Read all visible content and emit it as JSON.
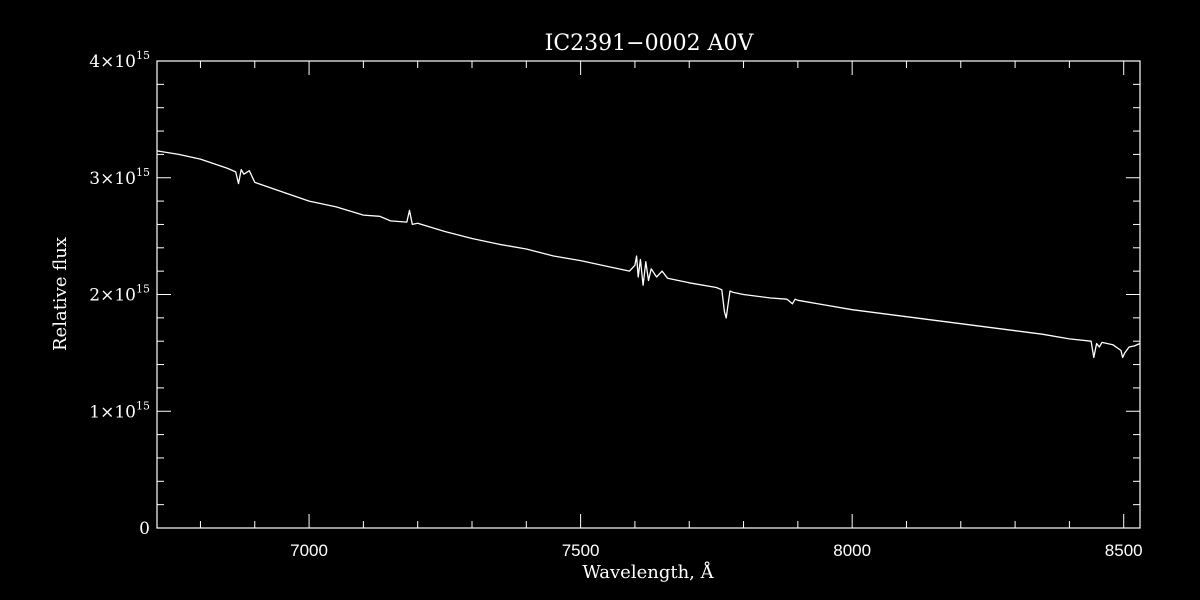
{
  "chart_data": {
    "type": "line",
    "title": "IC2391−0002  A0V",
    "xlabel": "Wavelength, Å",
    "ylabel": "Relative flux",
    "xlim": [
      6720,
      8530
    ],
    "ylim": [
      0,
      4000000000000000.0
    ],
    "x_ticks": [
      7000,
      7500,
      8000,
      8500
    ],
    "x_tick_labels": [
      "7000",
      "7500",
      "8000",
      "8500"
    ],
    "y_ticks": [
      {
        "value": 0,
        "mantissa": "0",
        "exponent": ""
      },
      {
        "value": 1000000000000000.0,
        "mantissa": "1×10",
        "exponent": "15"
      },
      {
        "value": 2000000000000000.0,
        "mantissa": "2×10",
        "exponent": "15"
      },
      {
        "value": 3000000000000000.0,
        "mantissa": "3×10",
        "exponent": "15"
      },
      {
        "value": 4000000000000000.0,
        "mantissa": "4×10",
        "exponent": "15"
      }
    ],
    "grid": false,
    "colors": {
      "background": "#000000",
      "foreground": "#ffffff"
    },
    "series": [
      {
        "x": [
          6720,
          6760,
          6800,
          6850,
          6865,
          6870,
          6875,
          6880,
          6890,
          6900,
          6950,
          7000,
          7050,
          7100,
          7130,
          7150,
          7180,
          7185,
          7190,
          7200,
          7250,
          7300,
          7350,
          7400,
          7450,
          7500,
          7550,
          7590,
          7600,
          7603,
          7606,
          7610,
          7615,
          7620,
          7625,
          7630,
          7640,
          7650,
          7660,
          7680,
          7700,
          7750,
          7760,
          7765,
          7768,
          7771,
          7775,
          7780,
          7800,
          7850,
          7880,
          7890,
          7895,
          7900,
          7950,
          8000,
          8050,
          8100,
          8150,
          8200,
          8250,
          8300,
          8350,
          8400,
          8440,
          8445,
          8450,
          8455,
          8460,
          8480,
          8495,
          8498,
          8502,
          8510,
          8520,
          8530
        ],
        "y": [
          3230000000000000.0,
          3200000000000000.0,
          3160000000000000.0,
          3080000000000000.0,
          3050000000000000.0,
          2950000000000000.0,
          3070000000000000.0,
          3030000000000000.0,
          3060000000000000.0,
          2960000000000000.0,
          2880000000000000.0,
          2800000000000000.0,
          2750000000000000.0,
          2680000000000000.0,
          2670000000000000.0,
          2630000000000000.0,
          2620000000000000.0,
          2720000000000000.0,
          2600000000000000.0,
          2610000000000000.0,
          2540000000000000.0,
          2480000000000000.0,
          2430000000000000.0,
          2390000000000000.0,
          2330000000000000.0,
          2290000000000000.0,
          2240000000000000.0,
          2200000000000000.0,
          2250000000000000.0,
          2330000000000000.0,
          2150000000000000.0,
          2300000000000000.0,
          2080000000000000.0,
          2280000000000000.0,
          2120000000000000.0,
          2220000000000000.0,
          2150000000000000.0,
          2200000000000000.0,
          2140000000000000.0,
          2120000000000000.0,
          2100000000000000.0,
          2060000000000000.0,
          2040000000000000.0,
          1850000000000000.0,
          1800000000000000.0,
          1900000000000000.0,
          2030000000000000.0,
          2020000000000000.0,
          2000000000000000.0,
          1970000000000000.0,
          1960000000000000.0,
          1920000000000000.0,
          1960000000000000.0,
          1950000000000000.0,
          1910000000000000.0,
          1870000000000000.0,
          1840000000000000.0,
          1810000000000000.0,
          1780000000000000.0,
          1750000000000000.0,
          1720000000000000.0,
          1690000000000000.0,
          1660000000000000.0,
          1620000000000000.0,
          1600000000000000.0,
          1460000000000000.0,
          1580000000000000.0,
          1550000000000000.0,
          1590000000000000.0,
          1570000000000000.0,
          1520000000000000.0,
          1460000000000000.0,
          1500000000000000.0,
          1550000000000000.0,
          1560000000000000.0,
          1580000000000000.0
        ]
      }
    ]
  }
}
